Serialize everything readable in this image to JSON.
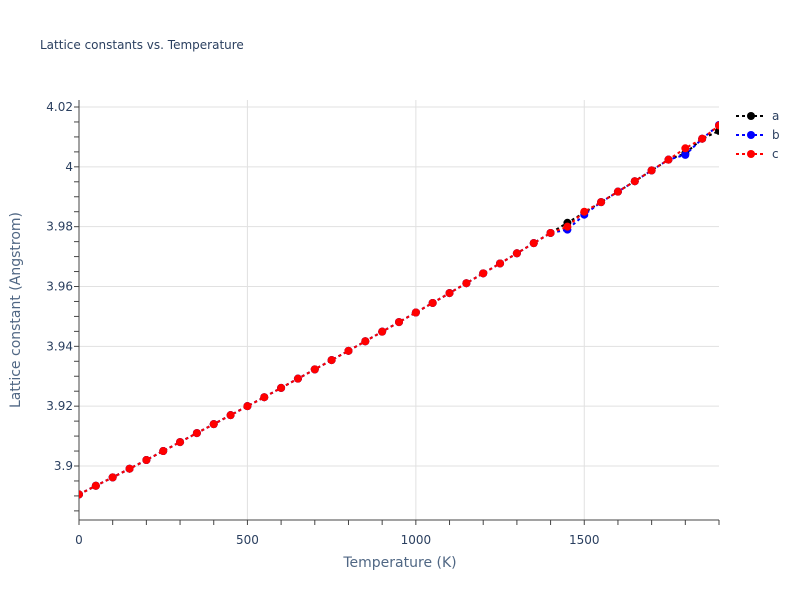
{
  "chart_data": {
    "type": "line",
    "title": "Lattice constants vs. Temperature",
    "xlabel": "Temperature (K)",
    "ylabel": "Lattice constant (Angstrom)",
    "xlim": [
      0,
      1900
    ],
    "ylim": [
      3.8835,
      4.0225
    ],
    "x_ticks": [
      0,
      500,
      1000,
      1500
    ],
    "x_tick_labels": [
      "0",
      "500",
      "1000",
      "1500"
    ],
    "y_ticks": [
      3.9,
      3.92,
      3.94,
      3.96,
      3.98,
      4.0,
      4.02
    ],
    "y_tick_labels": [
      "3.9",
      "3.92",
      "3.94",
      "3.96",
      "3.98",
      "4",
      "4.02"
    ],
    "grid": true,
    "legend_position": "right-top",
    "x": [
      0,
      50,
      100,
      150,
      200,
      250,
      300,
      350,
      400,
      450,
      500,
      550,
      600,
      650,
      700,
      750,
      800,
      850,
      900,
      950,
      1000,
      1050,
      1100,
      1150,
      1200,
      1250,
      1300,
      1350,
      1400,
      1450,
      1500,
      1550,
      1600,
      1650,
      1700,
      1750,
      1800,
      1850,
      1900
    ],
    "series": [
      {
        "name": "a",
        "color": "#000000",
        "line_style": "dot",
        "marker": "circle",
        "values": [
          3.8905,
          3.8934,
          3.8962,
          3.8991,
          3.902,
          3.905,
          3.908,
          3.911,
          3.914,
          3.917,
          3.92,
          3.923,
          3.9261,
          3.9292,
          3.9323,
          3.9354,
          3.9385,
          3.9417,
          3.9449,
          3.9481,
          3.9513,
          3.9545,
          3.9578,
          3.9611,
          3.9644,
          3.9677,
          3.9711,
          3.9745,
          3.9779,
          3.9813,
          3.9847,
          3.9882,
          3.9917,
          3.9952,
          3.9988,
          4.0024,
          4.0045,
          4.0094,
          4.012
        ]
      },
      {
        "name": "b",
        "color": "#0000ff",
        "line_style": "dot",
        "marker": "circle",
        "values": [
          3.8905,
          3.8934,
          3.8962,
          3.8991,
          3.902,
          3.905,
          3.908,
          3.911,
          3.914,
          3.917,
          3.92,
          3.923,
          3.9261,
          3.9292,
          3.9323,
          3.9354,
          3.9385,
          3.9417,
          3.9449,
          3.9481,
          3.9513,
          3.9545,
          3.9578,
          3.9611,
          3.9644,
          3.9677,
          3.9711,
          3.9745,
          3.9779,
          3.979,
          3.984,
          3.9882,
          3.9917,
          3.9952,
          3.9988,
          4.0024,
          4.004,
          4.0094,
          4.014
        ]
      },
      {
        "name": "c",
        "color": "#ff0000",
        "line_style": "dot",
        "marker": "circle",
        "values": [
          3.8905,
          3.8934,
          3.8962,
          3.8991,
          3.902,
          3.905,
          3.908,
          3.911,
          3.914,
          3.917,
          3.92,
          3.923,
          3.9261,
          3.9292,
          3.9323,
          3.9354,
          3.9385,
          3.9417,
          3.9449,
          3.9481,
          3.9513,
          3.9545,
          3.9578,
          3.9611,
          3.9644,
          3.9677,
          3.9711,
          3.9745,
          3.9779,
          3.98,
          3.985,
          3.9882,
          3.9917,
          3.9952,
          3.9988,
          4.0024,
          4.0062,
          4.0094,
          4.0138
        ]
      }
    ]
  }
}
